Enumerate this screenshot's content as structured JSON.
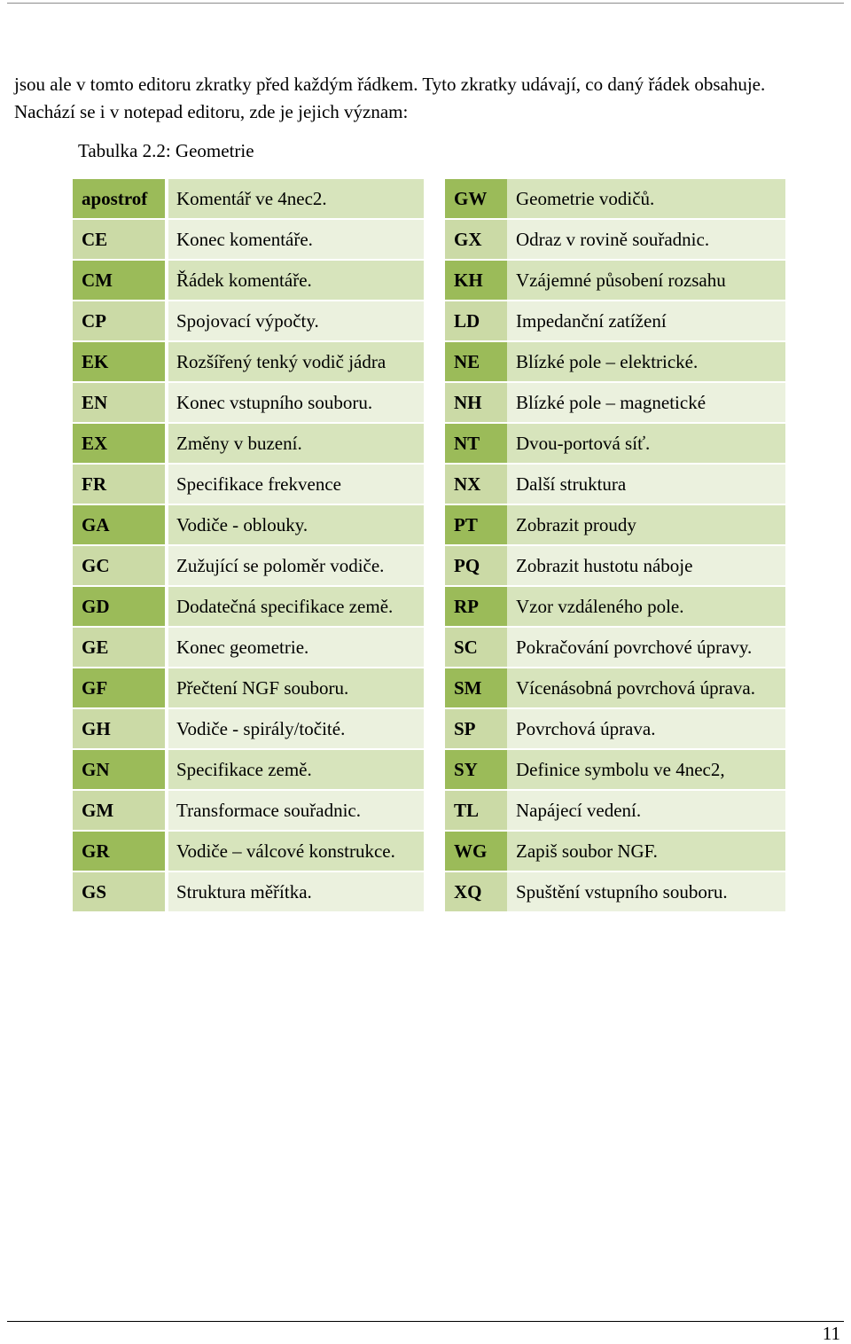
{
  "intro": {
    "line1": "jsou ale v tomto editoru zkratky před každým řádkem. Tyto zkratky udávají, co daný řádek obsahuje.",
    "line2": "Nachází se i v notepad editoru, zde je jejich význam:"
  },
  "caption": "Tabulka 2.2: Geometrie",
  "left_rows": [
    {
      "code": "apostrof",
      "desc": "Komentář ve 4nec2."
    },
    {
      "code": "CE",
      "desc": "Konec komentáře."
    },
    {
      "code": "CM",
      "desc": "Řádek komentáře."
    },
    {
      "code": "CP",
      "desc": "Spojovací výpočty."
    },
    {
      "code": "EK",
      "desc": "Rozšířený tenký vodič jádra"
    },
    {
      "code": "EN",
      "desc": "Konec vstupního souboru."
    },
    {
      "code": "EX",
      "desc": "Změny v buzení."
    },
    {
      "code": "FR",
      "desc": "Specifikace frekvence"
    },
    {
      "code": "GA",
      "desc": "Vodiče - oblouky."
    },
    {
      "code": "GC",
      "desc": "Zužující se poloměr vodiče."
    },
    {
      "code": "GD",
      "desc": "Dodatečná specifikace země."
    },
    {
      "code": "GE",
      "desc": "Konec geometrie."
    },
    {
      "code": "GF",
      "desc": "Přečtení NGF souboru."
    },
    {
      "code": "GH",
      "desc": "Vodiče - spirály/točité."
    },
    {
      "code": "GN",
      "desc": "Specifikace země."
    },
    {
      "code": "GM",
      "desc": "Transformace souřadnic."
    },
    {
      "code": "GR",
      "desc": "Vodiče – válcové konstrukce."
    },
    {
      "code": "GS",
      "desc": "Struktura měřítka."
    }
  ],
  "right_rows": [
    {
      "code": "GW",
      "desc": "Geometrie vodičů."
    },
    {
      "code": "GX",
      "desc": "Odraz v rovině souřadnic."
    },
    {
      "code": "KH",
      "desc": "Vzájemné působení rozsahu"
    },
    {
      "code": "LD",
      "desc": "Impedanční zatížení"
    },
    {
      "code": "NE",
      "desc": "Blízké pole – elektrické."
    },
    {
      "code": "NH",
      "desc": "Blízké pole – magnetické"
    },
    {
      "code": "NT",
      "desc": "Dvou-portová síť."
    },
    {
      "code": "NX",
      "desc": "Další struktura"
    },
    {
      "code": "PT",
      "desc": "Zobrazit proudy"
    },
    {
      "code": "PQ",
      "desc": "Zobrazit hustotu náboje"
    },
    {
      "code": "RP",
      "desc": "Vzor vzdáleného pole."
    },
    {
      "code": "SC",
      "desc": "Pokračování povrchové úpravy."
    },
    {
      "code": "SM",
      "desc": "Vícenásobná povrchová úprava."
    },
    {
      "code": "SP",
      "desc": "Povrchová úprava."
    },
    {
      "code": "SY",
      "desc": "Definice symbolu ve 4nec2,"
    },
    {
      "code": "TL",
      "desc": "Napájecí vedení."
    },
    {
      "code": "WG",
      "desc": "Zapiš soubor NGF."
    },
    {
      "code": "XQ",
      "desc": "Spuštění vstupního souboru."
    }
  ],
  "page_number": "11"
}
